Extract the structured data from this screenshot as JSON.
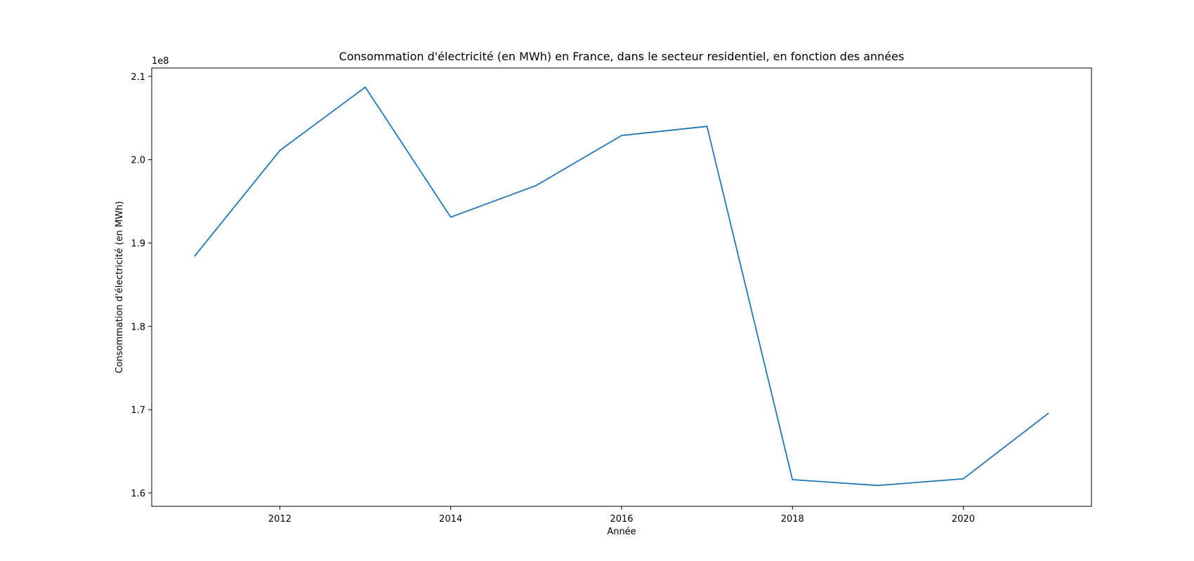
{
  "chart_data": {
    "type": "line",
    "title": "Consommation d'électricité (en MWh) en France, dans le secteur residentiel, en fonction des années",
    "xlabel": "Année",
    "ylabel": "Consommation d'électricité (en MWh)",
    "y_offset_label": "1e8",
    "xlim": [
      2010.5,
      2021.5
    ],
    "ylim": [
      158400000,
      211000000
    ],
    "x_ticks": [
      2012,
      2014,
      2016,
      2018,
      2020
    ],
    "x_tick_labels": [
      "2012",
      "2014",
      "2016",
      "2018",
      "2020"
    ],
    "y_ticks": [
      160000000,
      170000000,
      180000000,
      190000000,
      200000000,
      210000000
    ],
    "y_tick_labels": [
      "1.6",
      "1.7",
      "1.8",
      "1.9",
      "2.0",
      "2.1"
    ],
    "grid": false,
    "series": [
      {
        "color": "#1f77b4",
        "x": [
          2011,
          2012,
          2013,
          2014,
          2015,
          2016,
          2017,
          2018,
          2019,
          2020,
          2021
        ],
        "values": [
          188400000,
          201100000,
          208700000,
          193100000,
          196900000,
          202900000,
          204000000,
          161600000,
          160900000,
          161700000,
          169600000
        ]
      }
    ]
  }
}
